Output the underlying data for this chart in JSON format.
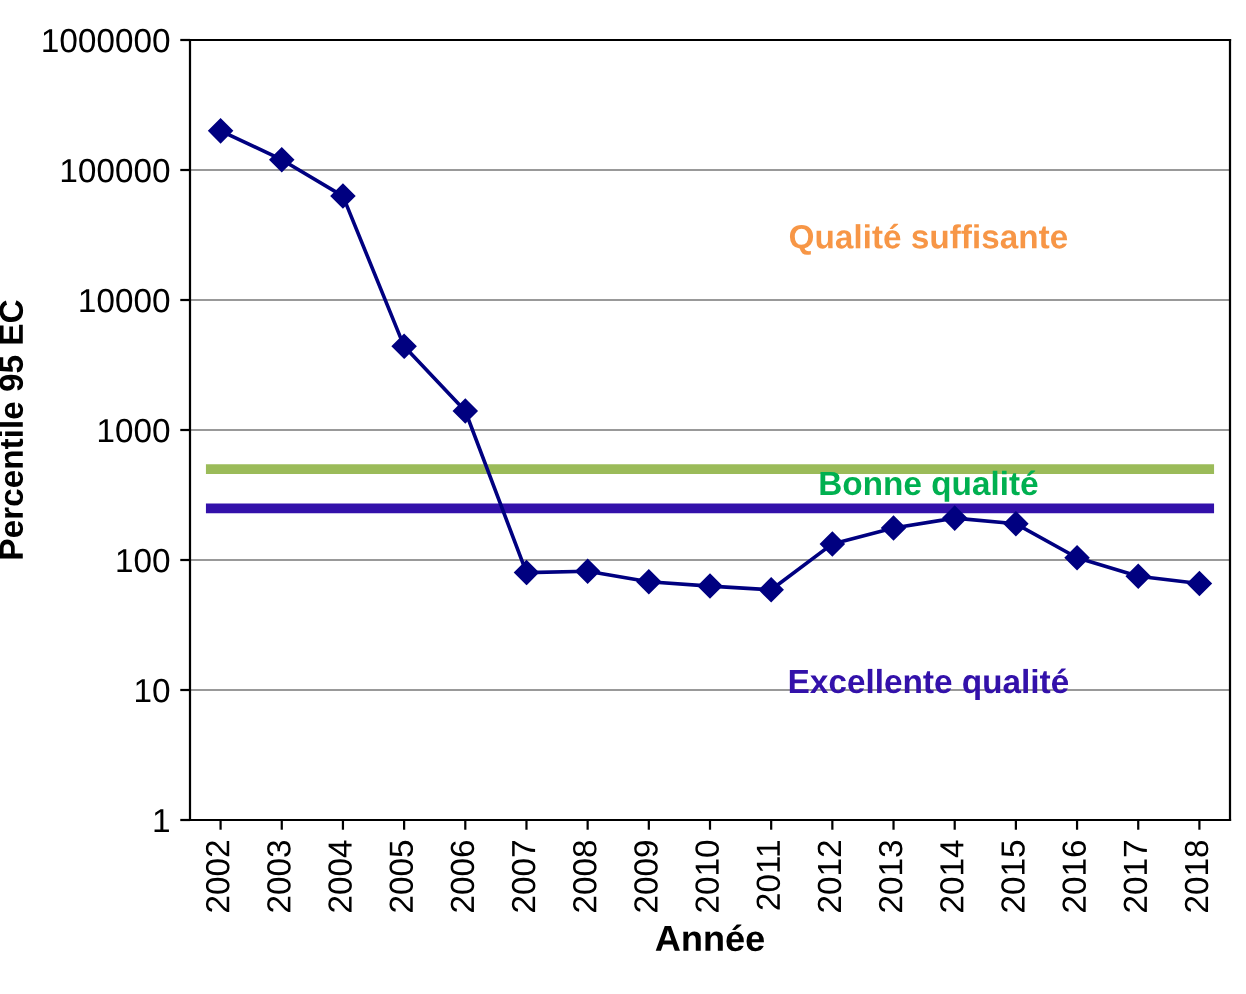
{
  "chart_data": {
    "type": "line",
    "xlabel": "Année",
    "ylabel": "Percentile 95 EC",
    "categories": [
      "2002",
      "2003",
      "2004",
      "2005",
      "2006",
      "2007",
      "2008",
      "2009",
      "2010",
      "2011",
      "2012",
      "2013",
      "2014",
      "2015",
      "2016",
      "2017",
      "2018"
    ],
    "series": [
      {
        "color": "#000080",
        "values": [
          200000,
          120000,
          63000,
          4400,
          1400,
          80,
          82,
          68,
          63,
          59,
          133,
          176,
          210,
          190,
          104,
          75,
          66
        ]
      }
    ],
    "log": "y",
    "ylim": [
      1,
      1000000
    ],
    "yticks": [
      1,
      10,
      100,
      1000,
      10000,
      100000,
      1000000
    ],
    "grid": "y",
    "marker": "diamond",
    "line_style": "solid",
    "ref_lines": [
      {
        "axis": "y",
        "value": 500,
        "color": "#9bbb59"
      },
      {
        "axis": "y",
        "value": 250,
        "color": "#3311aa"
      }
    ],
    "annotations": [
      "Qualité suffisante",
      "Bonne qualité",
      "Excellente qualité"
    ]
  }
}
